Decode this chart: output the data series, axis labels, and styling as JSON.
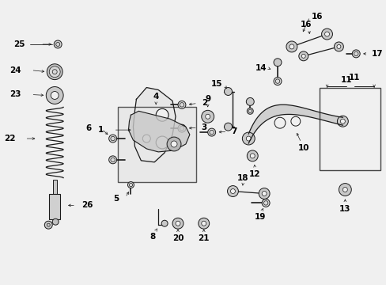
{
  "bg_color": "#f0f0f0",
  "line_color": "#1a1a1a",
  "label_color": "#000000",
  "figsize": [
    4.89,
    3.6
  ],
  "dpi": 100,
  "label_fs": 7.5,
  "lw_main": 0.9
}
